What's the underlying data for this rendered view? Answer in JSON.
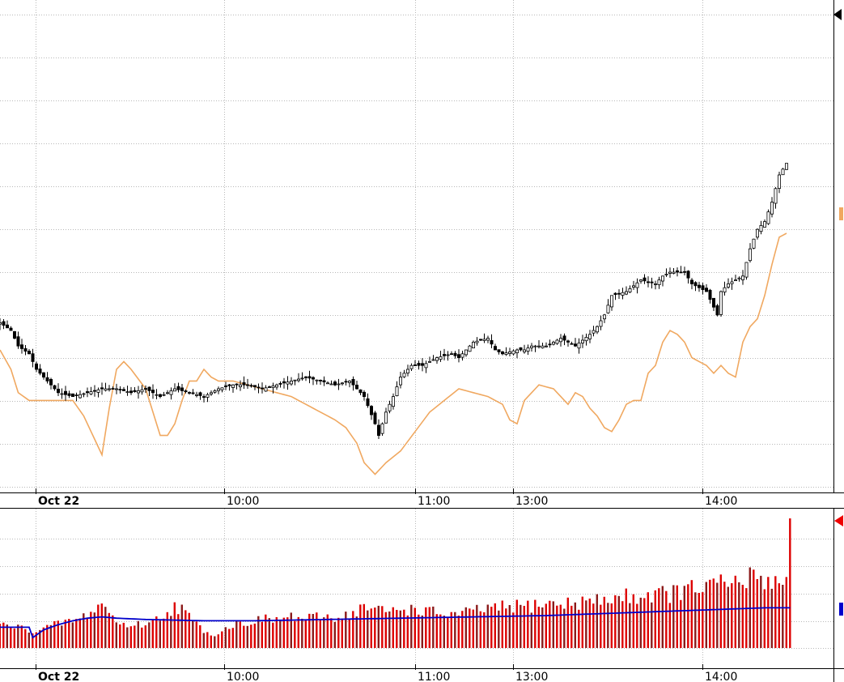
{
  "colors": {
    "candle_up_fill": "#ffffff",
    "candle_down_fill": "#000000",
    "candle_outline": "#000000",
    "overlay_line": "#f0a860",
    "volume_bar": "#dd0000",
    "volume_bar_alt": "#8b1a1a",
    "volume_ma_line": "#0000cc",
    "last_price_marker": "#000000",
    "overlay_marker": "#f0a860",
    "volume_marker": "#ee0000",
    "volume_ma_marker": "#0000cc",
    "grid": "#b8b8b8"
  },
  "chart_data": [
    {
      "type": "candlestick",
      "panel": "price",
      "session_date": "Oct 22",
      "time_labels": [
        "Oct 22",
        "10:00",
        "11:00",
        "13:00",
        "14:00"
      ],
      "price_grid": "on",
      "x_range": [
        0,
        220
      ],
      "y_range": [
        0,
        100
      ],
      "close_path": [
        [
          0,
          42
        ],
        [
          3,
          40
        ],
        [
          5,
          36
        ],
        [
          8,
          34
        ],
        [
          10,
          30
        ],
        [
          13,
          27
        ],
        [
          16,
          24
        ],
        [
          20,
          23
        ],
        [
          24,
          24
        ],
        [
          28,
          25
        ],
        [
          32,
          25
        ],
        [
          36,
          24
        ],
        [
          40,
          25
        ],
        [
          44,
          23
        ],
        [
          48,
          25
        ],
        [
          52,
          24
        ],
        [
          56,
          23
        ],
        [
          60,
          25
        ],
        [
          64,
          26
        ],
        [
          68,
          26
        ],
        [
          72,
          25
        ],
        [
          76,
          26
        ],
        [
          80,
          27
        ],
        [
          84,
          28
        ],
        [
          88,
          27
        ],
        [
          92,
          26
        ],
        [
          96,
          27
        ],
        [
          100,
          23
        ],
        [
          103,
          16
        ],
        [
          104,
          13
        ],
        [
          106,
          19
        ],
        [
          108,
          23
        ],
        [
          110,
          28
        ],
        [
          113,
          31
        ],
        [
          116,
          31
        ],
        [
          120,
          33
        ],
        [
          124,
          34
        ],
        [
          126,
          33
        ],
        [
          130,
          37
        ],
        [
          134,
          38
        ],
        [
          136,
          35
        ],
        [
          138,
          34
        ],
        [
          142,
          35
        ],
        [
          144,
          35
        ],
        [
          146,
          36
        ],
        [
          150,
          36
        ],
        [
          154,
          38
        ],
        [
          158,
          36
        ],
        [
          162,
          39
        ],
        [
          164,
          41
        ],
        [
          166,
          44
        ],
        [
          168,
          49
        ],
        [
          172,
          50
        ],
        [
          176,
          53
        ],
        [
          180,
          52
        ],
        [
          182,
          54
        ],
        [
          184,
          55
        ],
        [
          188,
          55
        ],
        [
          190,
          52
        ],
        [
          194,
          50
        ],
        [
          197,
          44
        ],
        [
          198,
          50
        ],
        [
          200,
          52
        ],
        [
          204,
          54
        ],
        [
          206,
          61
        ],
        [
          208,
          66
        ],
        [
          210,
          68
        ],
        [
          212,
          73
        ],
        [
          214,
          80
        ],
        [
          216,
          83
        ]
      ],
      "overlay_path": [
        [
          0,
          35
        ],
        [
          3,
          30
        ],
        [
          5,
          24
        ],
        [
          8,
          22
        ],
        [
          10,
          22
        ],
        [
          20,
          22
        ],
        [
          23,
          18
        ],
        [
          26,
          12
        ],
        [
          28,
          8
        ],
        [
          30,
          20
        ],
        [
          32,
          30
        ],
        [
          34,
          32
        ],
        [
          36,
          30
        ],
        [
          40,
          25
        ],
        [
          42,
          19
        ],
        [
          44,
          13
        ],
        [
          46,
          13
        ],
        [
          48,
          16
        ],
        [
          50,
          22
        ],
        [
          52,
          27
        ],
        [
          54,
          27
        ],
        [
          56,
          30
        ],
        [
          58,
          28
        ],
        [
          60,
          27
        ],
        [
          64,
          27
        ],
        [
          68,
          26
        ],
        [
          72,
          25
        ],
        [
          76,
          24
        ],
        [
          80,
          23
        ],
        [
          84,
          21
        ],
        [
          88,
          19
        ],
        [
          92,
          17
        ],
        [
          95,
          15
        ],
        [
          98,
          11
        ],
        [
          100,
          6
        ],
        [
          103,
          3
        ],
        [
          106,
          6
        ],
        [
          110,
          9
        ],
        [
          114,
          14
        ],
        [
          118,
          19
        ],
        [
          122,
          22
        ],
        [
          126,
          25
        ],
        [
          130,
          24
        ],
        [
          134,
          23
        ],
        [
          138,
          21
        ],
        [
          140,
          17
        ],
        [
          142,
          16
        ],
        [
          144,
          22
        ],
        [
          148,
          26
        ],
        [
          152,
          25
        ],
        [
          156,
          21
        ],
        [
          158,
          24
        ],
        [
          160,
          23
        ],
        [
          162,
          20
        ],
        [
          164,
          18
        ],
        [
          166,
          15
        ],
        [
          168,
          14
        ],
        [
          170,
          17
        ],
        [
          172,
          21
        ],
        [
          174,
          22
        ],
        [
          176,
          22
        ],
        [
          178,
          29
        ],
        [
          180,
          31
        ],
        [
          182,
          37
        ],
        [
          184,
          40
        ],
        [
          186,
          39
        ],
        [
          188,
          37
        ],
        [
          190,
          33
        ],
        [
          194,
          31
        ],
        [
          196,
          29
        ],
        [
          198,
          31
        ],
        [
          200,
          29
        ],
        [
          202,
          28
        ],
        [
          204,
          37
        ],
        [
          206,
          41
        ],
        [
          208,
          43
        ],
        [
          210,
          49
        ],
        [
          212,
          57
        ],
        [
          214,
          64
        ],
        [
          216,
          65
        ]
      ],
      "last_price_markers": [
        "candle",
        "overlay"
      ]
    },
    {
      "type": "bar",
      "panel": "volume",
      "time_labels": [
        "Oct 22",
        "10:00",
        "11:00",
        "13:00",
        "14:00"
      ],
      "x_range": [
        0,
        220
      ],
      "y_range": [
        0,
        100
      ],
      "volume_path": [
        [
          0,
          18
        ],
        [
          3,
          17
        ],
        [
          5,
          16
        ],
        [
          8,
          14
        ],
        [
          10,
          13
        ],
        [
          14,
          17
        ],
        [
          18,
          20
        ],
        [
          22,
          22
        ],
        [
          24,
          26
        ],
        [
          26,
          30
        ],
        [
          28,
          34
        ],
        [
          30,
          28
        ],
        [
          32,
          20
        ],
        [
          34,
          18
        ],
        [
          38,
          18
        ],
        [
          42,
          20
        ],
        [
          44,
          24
        ],
        [
          46,
          28
        ],
        [
          48,
          32
        ],
        [
          50,
          30
        ],
        [
          52,
          24
        ],
        [
          54,
          18
        ],
        [
          56,
          14
        ],
        [
          58,
          10
        ],
        [
          60,
          12
        ],
        [
          64,
          18
        ],
        [
          68,
          20
        ],
        [
          72,
          22
        ],
        [
          76,
          22
        ],
        [
          80,
          24
        ],
        [
          84,
          22
        ],
        [
          88,
          24
        ],
        [
          92,
          24
        ],
        [
          96,
          26
        ],
        [
          98,
          28
        ],
        [
          100,
          32
        ],
        [
          102,
          30
        ],
        [
          106,
          28
        ],
        [
          110,
          30
        ],
        [
          114,
          30
        ],
        [
          118,
          28
        ],
        [
          122,
          26
        ],
        [
          126,
          26
        ],
        [
          130,
          28
        ],
        [
          132,
          30
        ],
        [
          136,
          30
        ],
        [
          140,
          32
        ],
        [
          144,
          32
        ],
        [
          148,
          34
        ],
        [
          152,
          34
        ],
        [
          156,
          34
        ],
        [
          160,
          36
        ],
        [
          164,
          36
        ],
        [
          168,
          38
        ],
        [
          172,
          40
        ],
        [
          176,
          40
        ],
        [
          180,
          42
        ],
        [
          184,
          42
        ],
        [
          188,
          44
        ],
        [
          192,
          46
        ],
        [
          196,
          48
        ],
        [
          200,
          50
        ],
        [
          204,
          50
        ],
        [
          206,
          54
        ],
        [
          208,
          56
        ],
        [
          210,
          54
        ],
        [
          212,
          52
        ],
        [
          214,
          50
        ],
        [
          216,
          58
        ],
        [
          217,
          100
        ]
      ],
      "ma_path": [
        [
          0,
          16
        ],
        [
          8,
          16
        ],
        [
          9,
          8
        ],
        [
          12,
          14
        ],
        [
          16,
          18
        ],
        [
          20,
          21
        ],
        [
          24,
          23
        ],
        [
          28,
          24
        ],
        [
          32,
          23
        ],
        [
          40,
          22
        ],
        [
          56,
          21
        ],
        [
          70,
          21
        ],
        [
          90,
          22
        ],
        [
          110,
          23
        ],
        [
          130,
          24
        ],
        [
          150,
          25
        ],
        [
          170,
          27
        ],
        [
          190,
          29
        ],
        [
          200,
          30
        ],
        [
          210,
          31
        ],
        [
          217,
          31
        ]
      ],
      "last_value_markers": [
        "volume",
        "moving-average"
      ]
    }
  ]
}
